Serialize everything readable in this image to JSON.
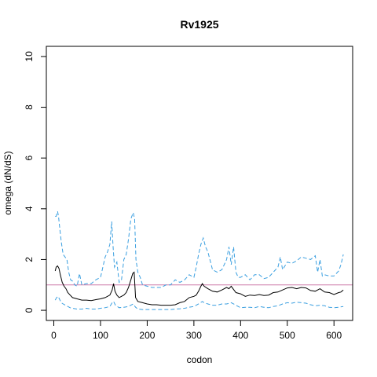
{
  "chart_data": {
    "type": "line",
    "title": "Rv1925",
    "xlabel": "codon",
    "ylabel": "omega (dN/dS)",
    "xlim": [
      -16,
      640
    ],
    "ylim": [
      -0.4,
      10.4
    ],
    "x_ticks": [
      0,
      100,
      200,
      300,
      400,
      500,
      600
    ],
    "x_tick_labels": [
      "0",
      "100",
      "200",
      "300",
      "400",
      "500",
      "600"
    ],
    "y_ticks": [
      0,
      2,
      4,
      6,
      8,
      10
    ],
    "y_tick_labels": [
      "0",
      "2",
      "4",
      "6",
      "8",
      "10"
    ],
    "reference_line": {
      "y": 1,
      "color": "#cc79a7"
    },
    "grid": false,
    "colors": {
      "mean": "#000000",
      "bounds": "#3a9fe0",
      "reference": "#cc79a7"
    },
    "series": [
      {
        "role": "upper",
        "style": "dashed",
        "x": [
          3,
          5,
          8,
          10,
          13,
          16,
          20,
          24,
          28,
          32,
          36,
          40,
          45,
          50,
          55,
          60,
          70,
          80,
          90,
          100,
          110,
          115,
          120,
          124,
          127,
          130,
          135,
          140,
          145,
          150,
          155,
          160,
          165,
          170,
          173,
          176,
          180,
          185,
          190,
          200,
          210,
          220,
          230,
          240,
          250,
          260,
          270,
          280,
          290,
          300,
          305,
          310,
          315,
          320,
          325,
          330,
          340,
          350,
          360,
          370,
          375,
          380,
          385,
          390,
          395,
          400,
          410,
          420,
          430,
          440,
          450,
          460,
          470,
          480,
          485,
          490,
          495,
          500,
          510,
          520,
          530,
          540,
          550,
          560,
          565,
          570,
          575,
          580,
          590,
          600,
          610,
          615,
          620
        ],
        "y": [
          3.7,
          3.7,
          3.9,
          3.7,
          3.2,
          2.7,
          2.2,
          2.1,
          2.0,
          1.5,
          1.2,
          1.15,
          1.0,
          0.95,
          1.45,
          1.0,
          1.05,
          1.05,
          1.2,
          1.3,
          2.1,
          2.3,
          2.6,
          3.5,
          2.5,
          1.7,
          1.9,
          1.1,
          1.2,
          2.0,
          2.2,
          2.8,
          3.6,
          3.85,
          3.6,
          2.0,
          1.5,
          1.3,
          1.0,
          0.95,
          0.9,
          0.9,
          0.9,
          1.0,
          1.0,
          1.2,
          1.1,
          1.2,
          1.4,
          1.3,
          1.7,
          2.2,
          2.6,
          2.85,
          2.5,
          2.3,
          1.6,
          1.5,
          1.6,
          2.0,
          2.5,
          1.8,
          2.5,
          1.5,
          1.3,
          1.3,
          1.4,
          1.2,
          1.4,
          1.4,
          1.25,
          1.3,
          1.5,
          1.7,
          2.1,
          1.6,
          1.75,
          1.9,
          1.85,
          1.95,
          2.1,
          2.05,
          2.0,
          2.15,
          1.5,
          2.0,
          1.35,
          1.4,
          1.35,
          1.35,
          1.55,
          1.8,
          2.2
        ]
      },
      {
        "role": "mean",
        "style": "solid",
        "x": [
          3,
          5,
          8,
          11,
          14,
          18,
          22,
          26,
          30,
          35,
          40,
          50,
          60,
          70,
          80,
          90,
          100,
          110,
          120,
          125,
          128,
          131,
          135,
          140,
          150,
          155,
          160,
          165,
          169,
          172,
          175,
          180,
          190,
          200,
          210,
          220,
          230,
          240,
          250,
          260,
          270,
          280,
          290,
          300,
          305,
          310,
          315,
          318,
          322,
          330,
          340,
          350,
          360,
          370,
          375,
          380,
          385,
          390,
          400,
          410,
          420,
          430,
          440,
          450,
          460,
          470,
          480,
          490,
          500,
          510,
          520,
          530,
          540,
          550,
          560,
          570,
          580,
          590,
          600,
          610,
          615,
          620
        ],
        "y": [
          1.55,
          1.7,
          1.75,
          1.65,
          1.4,
          1.1,
          0.95,
          0.85,
          0.7,
          0.6,
          0.5,
          0.45,
          0.4,
          0.4,
          0.38,
          0.42,
          0.45,
          0.5,
          0.6,
          0.8,
          1.05,
          0.75,
          0.6,
          0.5,
          0.6,
          0.7,
          0.9,
          1.2,
          1.45,
          1.5,
          0.5,
          0.35,
          0.3,
          0.25,
          0.22,
          0.22,
          0.2,
          0.2,
          0.2,
          0.22,
          0.3,
          0.35,
          0.5,
          0.55,
          0.6,
          0.75,
          0.95,
          1.05,
          0.95,
          0.85,
          0.75,
          0.72,
          0.8,
          0.9,
          0.85,
          0.95,
          0.82,
          0.7,
          0.65,
          0.55,
          0.6,
          0.58,
          0.62,
          0.58,
          0.6,
          0.7,
          0.72,
          0.8,
          0.88,
          0.9,
          0.85,
          0.9,
          0.88,
          0.78,
          0.75,
          0.85,
          0.72,
          0.7,
          0.62,
          0.7,
          0.72,
          0.8
        ]
      },
      {
        "role": "lower",
        "style": "dashed",
        "x": [
          3,
          6,
          9,
          12,
          16,
          20,
          25,
          30,
          35,
          40,
          50,
          60,
          70,
          80,
          90,
          100,
          110,
          120,
          125,
          128,
          132,
          140,
          150,
          160,
          170,
          175,
          180,
          190,
          200,
          210,
          220,
          230,
          240,
          250,
          260,
          270,
          280,
          290,
          300,
          310,
          318,
          322,
          330,
          340,
          350,
          360,
          370,
          380,
          390,
          400,
          410,
          420,
          430,
          440,
          450,
          460,
          470,
          480,
          490,
          500,
          510,
          520,
          530,
          540,
          550,
          560,
          570,
          580,
          590,
          600,
          610,
          620
        ],
        "y": [
          0.4,
          0.5,
          0.55,
          0.45,
          0.3,
          0.25,
          0.2,
          0.15,
          0.1,
          0.08,
          0.05,
          0.05,
          0.08,
          0.05,
          0.05,
          0.08,
          0.1,
          0.15,
          0.3,
          0.35,
          0.2,
          0.1,
          0.12,
          0.15,
          0.25,
          0.12,
          0.05,
          0.03,
          0.03,
          0.03,
          0.03,
          0.03,
          0.03,
          0.03,
          0.05,
          0.06,
          0.08,
          0.12,
          0.15,
          0.25,
          0.35,
          0.3,
          0.25,
          0.2,
          0.2,
          0.25,
          0.25,
          0.3,
          0.2,
          0.1,
          0.12,
          0.12,
          0.1,
          0.15,
          0.12,
          0.1,
          0.15,
          0.18,
          0.25,
          0.3,
          0.28,
          0.32,
          0.3,
          0.28,
          0.22,
          0.18,
          0.2,
          0.18,
          0.12,
          0.1,
          0.12,
          0.15
        ]
      }
    ]
  }
}
